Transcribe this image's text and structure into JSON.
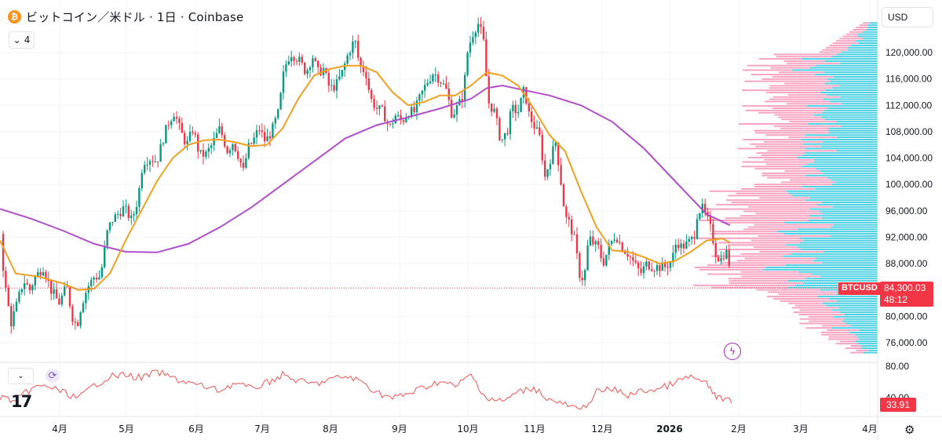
{
  "header": {
    "coin_glyph": "₿",
    "title": "ビットコイン／米ドル · 1日 · Coinbase",
    "collapse_count": "4",
    "currency": "USD"
  },
  "price_badge": {
    "symbol": "BTCUSD",
    "price": "84,300.03",
    "countdown": "48:12"
  },
  "rsi_badge": {
    "value": "33.91",
    "cut_label": "40.00"
  },
  "colors": {
    "up": "#089981",
    "down": "#f23645",
    "ma_fast": "#f0a020",
    "ma_slow": "#b04fc7",
    "rsi": "#ef5350",
    "vp_up": "#4dd0e1",
    "vp_down": "#f8a5c2"
  },
  "chart_data": {
    "type": "candlestick",
    "title": "ビットコイン／米ドル · 1日 · Coinbase",
    "x_months": [
      "4月",
      "5月",
      "6月",
      "7月",
      "8月",
      "9月",
      "10月",
      "11月",
      "12月",
      "2026",
      "2月",
      "3月",
      "4月"
    ],
    "y_ticks": [
      "120,000.00",
      "116,000.00",
      "112,000.00",
      "108,000.00",
      "104,000.00",
      "100,000.00",
      "96,000.00",
      "92,000.00",
      "88,000.00",
      "80,000.00",
      "76,000.00"
    ],
    "ylim": [
      73000,
      125500
    ],
    "last_price": 84300.03,
    "rsi_top_label": "80.00",
    "price_path": [
      [
        0,
        92500
      ],
      [
        6,
        85000
      ],
      [
        14,
        79000
      ],
      [
        22,
        82000
      ],
      [
        30,
        85500
      ],
      [
        38,
        84000
      ],
      [
        45,
        86000
      ],
      [
        55,
        87500
      ],
      [
        65,
        84000
      ],
      [
        75,
        82000
      ],
      [
        85,
        84500
      ],
      [
        92,
        80000
      ],
      [
        98,
        78500
      ],
      [
        104,
        82000
      ],
      [
        112,
        84500
      ],
      [
        120,
        86000
      ],
      [
        128,
        86000
      ],
      [
        136,
        92500
      ],
      [
        142,
        94500
      ],
      [
        150,
        95500
      ],
      [
        158,
        96500
      ],
      [
        168,
        94500
      ],
      [
        176,
        98000
      ],
      [
        182,
        103500
      ],
      [
        192,
        104000
      ],
      [
        200,
        103500
      ],
      [
        208,
        107000
      ],
      [
        215,
        109500
      ],
      [
        222,
        111000
      ],
      [
        230,
        108000
      ],
      [
        238,
        106000
      ],
      [
        246,
        108500
      ],
      [
        254,
        104500
      ],
      [
        262,
        104500
      ],
      [
        270,
        106000
      ],
      [
        280,
        108500
      ],
      [
        290,
        105000
      ],
      [
        296,
        106500
      ],
      [
        302,
        105000
      ],
      [
        310,
        102000
      ],
      [
        316,
        105500
      ],
      [
        322,
        106500
      ],
      [
        330,
        108500
      ],
      [
        338,
        106500
      ],
      [
        346,
        108000
      ],
      [
        355,
        111000
      ],
      [
        362,
        117500
      ],
      [
        370,
        120000
      ],
      [
        380,
        119000
      ],
      [
        390,
        117000
      ],
      [
        398,
        119500
      ],
      [
        405,
        117000
      ],
      [
        412,
        117500
      ],
      [
        420,
        114500
      ],
      [
        428,
        115000
      ],
      [
        436,
        117000
      ],
      [
        444,
        120000
      ],
      [
        452,
        122000
      ],
      [
        458,
        118000
      ],
      [
        466,
        117000
      ],
      [
        472,
        113000
      ],
      [
        480,
        111500
      ],
      [
        488,
        111000
      ],
      [
        496,
        108500
      ],
      [
        504,
        110500
      ],
      [
        512,
        109500
      ],
      [
        520,
        111000
      ],
      [
        528,
        111000
      ],
      [
        536,
        113500
      ],
      [
        544,
        115500
      ],
      [
        552,
        117000
      ],
      [
        560,
        116000
      ],
      [
        568,
        114500
      ],
      [
        576,
        110500
      ],
      [
        584,
        112000
      ],
      [
        590,
        113500
      ],
      [
        596,
        120500
      ],
      [
        604,
        123500
      ],
      [
        610,
        124500
      ],
      [
        616,
        121500
      ],
      [
        622,
        112500
      ],
      [
        630,
        111000
      ],
      [
        638,
        106500
      ],
      [
        646,
        108000
      ],
      [
        652,
        111500
      ],
      [
        660,
        111000
      ],
      [
        668,
        114500
      ],
      [
        674,
        110500
      ],
      [
        680,
        109000
      ],
      [
        688,
        107000
      ],
      [
        694,
        101000
      ],
      [
        700,
        103500
      ],
      [
        708,
        106500
      ],
      [
        714,
        101000
      ],
      [
        720,
        95000
      ],
      [
        726,
        94000
      ],
      [
        732,
        91500
      ],
      [
        738,
        86500
      ],
      [
        744,
        85500
      ],
      [
        750,
        92000
      ],
      [
        756,
        91000
      ],
      [
        762,
        90500
      ],
      [
        768,
        88000
      ],
      [
        776,
        90500
      ],
      [
        784,
        92500
      ],
      [
        792,
        90500
      ],
      [
        800,
        89500
      ],
      [
        808,
        88000
      ],
      [
        816,
        86500
      ],
      [
        824,
        88000
      ],
      [
        832,
        87500
      ],
      [
        840,
        87500
      ],
      [
        848,
        87500
      ],
      [
        856,
        88500
      ],
      [
        862,
        91500
      ],
      [
        868,
        90500
      ],
      [
        876,
        91000
      ],
      [
        884,
        92000
      ],
      [
        888,
        95500
      ],
      [
        894,
        96500
      ],
      [
        900,
        95000
      ],
      [
        906,
        93000
      ],
      [
        912,
        89500
      ],
      [
        918,
        88500
      ],
      [
        924,
        90000
      ],
      [
        928,
        89000
      ],
      [
        932,
        84300
      ]
    ],
    "ma_fast_path": [
      [
        0,
        91500
      ],
      [
        20,
        86500
      ],
      [
        50,
        86000
      ],
      [
        80,
        85000
      ],
      [
        100,
        84000
      ],
      [
        120,
        84200
      ],
      [
        140,
        86500
      ],
      [
        160,
        91500
      ],
      [
        180,
        96000
      ],
      [
        200,
        100500
      ],
      [
        220,
        104000
      ],
      [
        240,
        106000
      ],
      [
        260,
        106700
      ],
      [
        280,
        106800
      ],
      [
        300,
        106400
      ],
      [
        320,
        105800
      ],
      [
        340,
        106000
      ],
      [
        360,
        108500
      ],
      [
        380,
        113000
      ],
      [
        400,
        116500
      ],
      [
        420,
        117500
      ],
      [
        440,
        118000
      ],
      [
        460,
        118000
      ],
      [
        480,
        117000
      ],
      [
        500,
        114000
      ],
      [
        520,
        112000
      ],
      [
        540,
        112500
      ],
      [
        560,
        113500
      ],
      [
        580,
        113500
      ],
      [
        600,
        115000
      ],
      [
        620,
        117000
      ],
      [
        640,
        116500
      ],
      [
        660,
        115000
      ],
      [
        680,
        111500
      ],
      [
        700,
        107500
      ],
      [
        720,
        105000
      ],
      [
        740,
        99000
      ],
      [
        760,
        93500
      ],
      [
        780,
        90000
      ],
      [
        800,
        89800
      ],
      [
        820,
        89000
      ],
      [
        840,
        88000
      ],
      [
        860,
        88400
      ],
      [
        880,
        89800
      ],
      [
        900,
        91500
      ],
      [
        920,
        91800
      ],
      [
        930,
        91200
      ]
    ],
    "ma_slow_path": [
      [
        0,
        96300
      ],
      [
        40,
        94800
      ],
      [
        80,
        93000
      ],
      [
        120,
        91000
      ],
      [
        160,
        89800
      ],
      [
        200,
        89700
      ],
      [
        240,
        91000
      ],
      [
        280,
        93500
      ],
      [
        320,
        96500
      ],
      [
        360,
        100000
      ],
      [
        400,
        103500
      ],
      [
        440,
        107000
      ],
      [
        480,
        109000
      ],
      [
        520,
        110200
      ],
      [
        560,
        111500
      ],
      [
        600,
        113000
      ],
      [
        620,
        114600
      ],
      [
        640,
        115000
      ],
      [
        660,
        114500
      ],
      [
        700,
        113500
      ],
      [
        740,
        112000
      ],
      [
        780,
        109500
      ],
      [
        820,
        105500
      ],
      [
        860,
        100500
      ],
      [
        900,
        95500
      ],
      [
        930,
        93800
      ]
    ],
    "rsi_path": [
      [
        0,
        506
      ],
      [
        20,
        512
      ],
      [
        40,
        495
      ],
      [
        60,
        492
      ],
      [
        80,
        500
      ],
      [
        100,
        508
      ],
      [
        120,
        491
      ],
      [
        140,
        480
      ],
      [
        160,
        478
      ],
      [
        180,
        482
      ],
      [
        200,
        474
      ],
      [
        220,
        482
      ],
      [
        240,
        488
      ],
      [
        260,
        493
      ],
      [
        280,
        498
      ],
      [
        300,
        488
      ],
      [
        320,
        496
      ],
      [
        340,
        488
      ],
      [
        360,
        478
      ],
      [
        380,
        486
      ],
      [
        400,
        490
      ],
      [
        420,
        484
      ],
      [
        440,
        480
      ],
      [
        460,
        486
      ],
      [
        480,
        500
      ],
      [
        500,
        508
      ],
      [
        520,
        502
      ],
      [
        540,
        494
      ],
      [
        560,
        486
      ],
      [
        580,
        493
      ],
      [
        600,
        478
      ],
      [
        620,
        508
      ],
      [
        640,
        512
      ],
      [
        660,
        500
      ],
      [
        680,
        494
      ],
      [
        700,
        510
      ],
      [
        720,
        516
      ],
      [
        740,
        524
      ],
      [
        760,
        500
      ],
      [
        780,
        496
      ],
      [
        800,
        504
      ],
      [
        820,
        498
      ],
      [
        840,
        496
      ],
      [
        860,
        488
      ],
      [
        880,
        480
      ],
      [
        900,
        490
      ],
      [
        915,
        508
      ],
      [
        932,
        512
      ]
    ],
    "volume_profile_note": "horizontal histogram on right, cyan/pink split"
  }
}
